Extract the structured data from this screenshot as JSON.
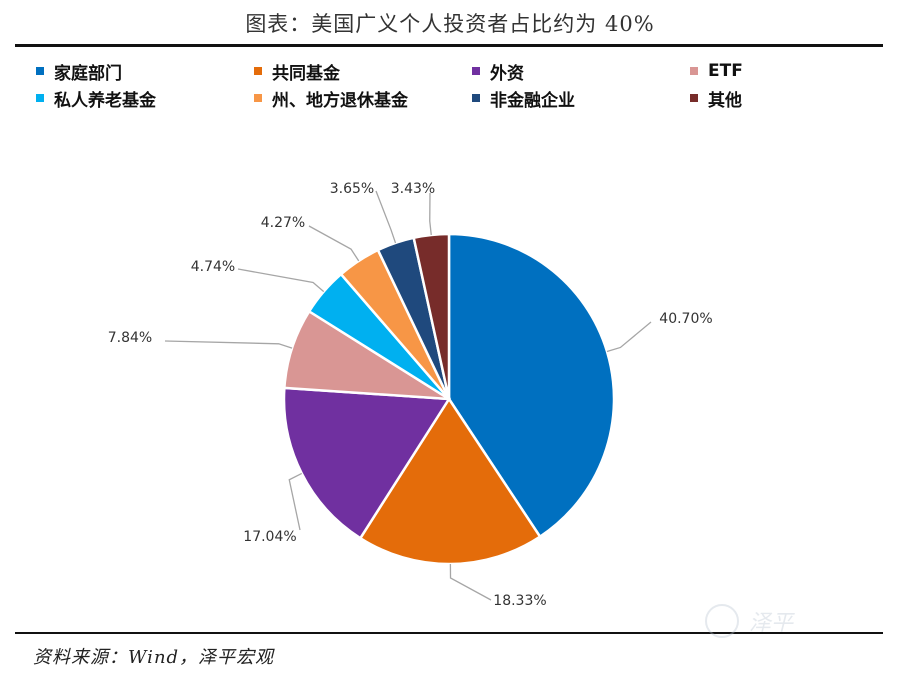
{
  "page": {
    "title": "图表：美国广义个人投资者占比约为 40%",
    "source": "资料来源：Wind，泽平宏观",
    "watermark": "泽平"
  },
  "chart_data": {
    "type": "pie",
    "title": "图表：美国广义个人投资者占比约为 40%",
    "legend_position": "top",
    "labels": [
      "家庭部门",
      "共同基金",
      "外资",
      "ETF",
      "私人养老基金",
      "州、地方退休基金",
      "非金融企业",
      "其他"
    ],
    "values": [
      40.7,
      18.33,
      17.04,
      7.84,
      4.74,
      4.27,
      3.65,
      3.43
    ],
    "value_labels": [
      "40.70%",
      "18.33%",
      "17.04%",
      "7.84%",
      "4.74%",
      "4.27%",
      "3.65%",
      "3.43%"
    ],
    "colors": [
      "#0070C0",
      "#E46C0A",
      "#7030A0",
      "#D99694",
      "#00B0F0",
      "#F79646",
      "#1F497D",
      "#772C2A"
    ],
    "start_angle_deg": 0,
    "direction": "clockwise"
  }
}
